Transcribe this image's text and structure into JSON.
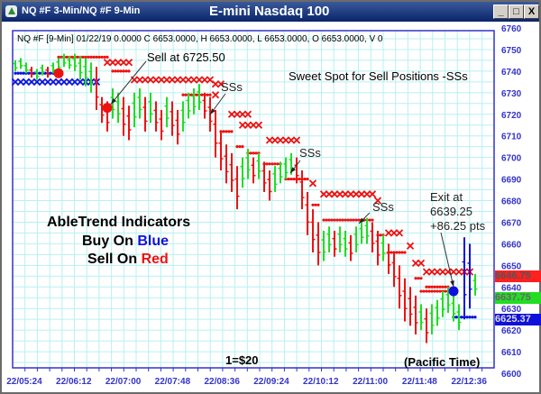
{
  "window": {
    "title": "NQ #F 3-Min/NQ #F 9-Min",
    "chart_title": "E-mini Nasdaq 100",
    "buttons": {
      "minimize": "_",
      "maximize": "□",
      "close": "X"
    }
  },
  "info_line": "NQ #F [9-Min] 01/22/19  0.0000 C 6653.0000, H 6653.0000, L 6653.0000, O 6653.0000, V 0",
  "annotations": {
    "sell": "Sell at 6725.50",
    "sweet_spot": "Sweet Spot for Sell Positions -SSs",
    "ss1": "SSs",
    "ss2": "SSs",
    "ss3": "SSs",
    "exit_1": "Exit at",
    "exit_2": "6639.25",
    "exit_3": "+86.25 pts",
    "legend_1": "AbleTrend Indicators",
    "legend_buy_prefix": "Buy On ",
    "legend_buy_color": "Blue",
    "legend_sell_prefix": "Sell On ",
    "legend_sell_color": "Red",
    "point_value": "1=$20",
    "timezone": "(Pacific Time)"
  },
  "price_tags": [
    {
      "value": "6646.75",
      "color": "#ff2020"
    },
    {
      "value": "6637.75",
      "color": "#22dd22"
    },
    {
      "value": "6625.37",
      "color": "#1010dd"
    }
  ],
  "colors": {
    "up": "#22dd22",
    "down": "#ee1111",
    "buy": "#1010dd",
    "grid": "#b8f0f0",
    "axis": "#3333cc"
  },
  "chart_data": {
    "type": "bar",
    "ylim": [
      6600,
      6760
    ],
    "yticks": [
      6600,
      6610,
      6620,
      6630,
      6640,
      6650,
      6660,
      6670,
      6680,
      6690,
      6700,
      6710,
      6720,
      6730,
      6740,
      6750,
      6760
    ],
    "xticks": [
      "22/05:24",
      "22/06:12",
      "22/07:00",
      "22/07:48",
      "22/08:36",
      "22/09:24",
      "22/10:12",
      "22/11:00",
      "22/11:48",
      "22/12:36"
    ],
    "grid": true,
    "bars_high_low": [
      [
        6745,
        6740
      ],
      [
        6746,
        6741
      ],
      [
        6744,
        6739
      ],
      [
        6742,
        6737
      ],
      [
        6741,
        6736
      ],
      [
        6743,
        6738
      ],
      [
        6742,
        6737
      ],
      [
        6744,
        6739
      ],
      [
        6746,
        6740
      ],
      [
        6748,
        6742
      ],
      [
        6747,
        6741
      ],
      [
        6748,
        6740
      ],
      [
        6747,
        6736
      ],
      [
        6746,
        6733
      ],
      [
        6744,
        6730
      ],
      [
        6742,
        6722
      ],
      [
        6728,
        6716
      ],
      [
        6726,
        6712
      ],
      [
        6732,
        6718
      ],
      [
        6730,
        6716
      ],
      [
        6728,
        6710
      ],
      [
        6724,
        6708
      ],
      [
        6730,
        6714
      ],
      [
        6732,
        6718
      ],
      [
        6728,
        6712
      ],
      [
        6730,
        6716
      ],
      [
        6726,
        6712
      ],
      [
        6722,
        6708
      ],
      [
        6728,
        6714
      ],
      [
        6726,
        6710
      ],
      [
        6722,
        6706
      ],
      [
        6726,
        6712
      ],
      [
        6730,
        6718
      ],
      [
        6732,
        6720
      ],
      [
        6734,
        6722
      ],
      [
        6730,
        6718
      ],
      [
        6728,
        6712
      ],
      [
        6722,
        6700
      ],
      [
        6712,
        6694
      ],
      [
        6706,
        6688
      ],
      [
        6702,
        6684
      ],
      [
        6696,
        6676
      ],
      [
        6700,
        6686
      ],
      [
        6704,
        6690
      ],
      [
        6700,
        6688
      ],
      [
        6702,
        6690
      ],
      [
        6698,
        6684
      ],
      [
        6694,
        6680
      ],
      [
        6696,
        6684
      ],
      [
        6698,
        6688
      ],
      [
        6700,
        6690
      ],
      [
        6702,
        6692
      ],
      [
        6700,
        6688
      ],
      [
        6694,
        6676
      ],
      [
        6684,
        6664
      ],
      [
        6676,
        6656
      ],
      [
        6670,
        6650
      ],
      [
        6666,
        6652
      ],
      [
        6668,
        6656
      ],
      [
        6666,
        6654
      ],
      [
        6668,
        6656
      ],
      [
        6666,
        6654
      ],
      [
        6664,
        6652
      ],
      [
        6668,
        6656
      ],
      [
        6670,
        6660
      ],
      [
        6672,
        6660
      ],
      [
        6670,
        6656
      ],
      [
        6666,
        6650
      ],
      [
        6664,
        6652
      ],
      [
        6660,
        6646
      ],
      [
        6656,
        6640
      ],
      [
        6650,
        6630
      ],
      [
        6644,
        6624
      ],
      [
        6640,
        6622
      ],
      [
        6636,
        6618
      ],
      [
        6632,
        6620
      ],
      [
        6630,
        6614
      ],
      [
        6632,
        6618
      ],
      [
        6634,
        6622
      ],
      [
        6638,
        6626
      ],
      [
        6640,
        6628
      ],
      [
        6636,
        6624
      ],
      [
        6632,
        6620
      ],
      [
        6663,
        6625
      ],
      [
        6660,
        6630
      ],
      [
        6646,
        6636
      ]
    ],
    "bar_colors": "GGGRGGRGGGGGGGGRRRGGRRGGRGRRGRRGGGGRRRRRRRGGRGRRGGGGRRRRRGGRGGRGGGRRGRRRRRRGRGGGGGGBBG",
    "stops": [
      {
        "style": "dots",
        "color": "blue",
        "bars": [
          0,
          8
        ],
        "price": 6739
      },
      {
        "style": "x",
        "color": "blue",
        "bars": [
          0,
          15
        ],
        "price": 6735
      },
      {
        "style": "dots",
        "color": "red",
        "bars": [
          8,
          17
        ],
        "price": 6746.5
      },
      {
        "style": "x",
        "color": "red",
        "bars": [
          17,
          21
        ],
        "price": 6744
      },
      {
        "style": "dots",
        "color": "red",
        "bars": [
          18,
          21
        ],
        "price": 6740
      },
      {
        "style": "x",
        "color": "red",
        "bars": [
          22,
          36
        ],
        "price": 6736
      },
      {
        "style": "x",
        "color": "red",
        "bars": [
          37,
          38
        ],
        "price": 6734
      },
      {
        "style": "dots",
        "color": "red",
        "bars": [
          31,
          36
        ],
        "price": 6729
      },
      {
        "style": "x",
        "color": "red",
        "bars": [
          37,
          37
        ],
        "price": 6729
      },
      {
        "style": "x",
        "color": "red",
        "bars": [
          40,
          43
        ],
        "price": 6720
      },
      {
        "style": "x",
        "color": "red",
        "bars": [
          42,
          45
        ],
        "price": 6715
      },
      {
        "style": "dots",
        "color": "red",
        "bars": [
          38,
          40
        ],
        "price": 6712
      },
      {
        "style": "dots",
        "color": "red",
        "bars": [
          41,
          42
        ],
        "price": 6705
      },
      {
        "style": "x",
        "color": "red",
        "bars": [
          47,
          52
        ],
        "price": 6708
      },
      {
        "style": "dots",
        "color": "red",
        "bars": [
          43,
          45
        ],
        "price": 6702
      },
      {
        "style": "dots",
        "color": "red",
        "bars": [
          46,
          49
        ],
        "price": 6697
      },
      {
        "style": "dots",
        "color": "red",
        "bars": [
          50,
          54
        ],
        "price": 6690
      },
      {
        "style": "x",
        "color": "red",
        "bars": [
          55,
          55
        ],
        "price": 6688
      },
      {
        "style": "dots",
        "color": "red",
        "bars": [
          55,
          56
        ],
        "price": 6678
      },
      {
        "style": "x",
        "color": "red",
        "bars": [
          57,
          66
        ],
        "price": 6683
      },
      {
        "style": "x",
        "color": "red",
        "bars": [
          67,
          67
        ],
        "price": 6680
      },
      {
        "style": "dots",
        "color": "red",
        "bars": [
          57,
          66
        ],
        "price": 6671
      },
      {
        "style": "dots",
        "color": "red",
        "bars": [
          67,
          68
        ],
        "price": 6664
      },
      {
        "style": "x",
        "color": "red",
        "bars": [
          69,
          71
        ],
        "price": 6665
      },
      {
        "style": "dots",
        "color": "red",
        "bars": [
          69,
          72
        ],
        "price": 6656
      },
      {
        "style": "x",
        "color": "red",
        "bars": [
          73,
          73
        ],
        "price": 6659
      },
      {
        "style": "x",
        "color": "red",
        "bars": [
          74,
          75
        ],
        "price": 6651
      },
      {
        "style": "dots",
        "color": "red",
        "bars": [
          74,
          75
        ],
        "price": 6644
      },
      {
        "style": "x",
        "color": "red",
        "bars": [
          76,
          84
        ],
        "price": 6647
      },
      {
        "style": "dots",
        "color": "red",
        "bars": [
          76,
          80
        ],
        "price": 6640
      },
      {
        "style": "dots",
        "color": "red",
        "bars": [
          75,
          81
        ],
        "price": 6638
      },
      {
        "style": "dots",
        "color": "blue",
        "bars": [
          81,
          85
        ],
        "price": 6626
      }
    ],
    "signals": [
      {
        "type": "buy-exit",
        "color": "red",
        "bar": 8,
        "price": 6739
      },
      {
        "type": "sell",
        "color": "red",
        "bar": 17,
        "price": 6723
      },
      {
        "type": "exit",
        "color": "blue",
        "bar": 81,
        "price": 6638
      }
    ]
  }
}
